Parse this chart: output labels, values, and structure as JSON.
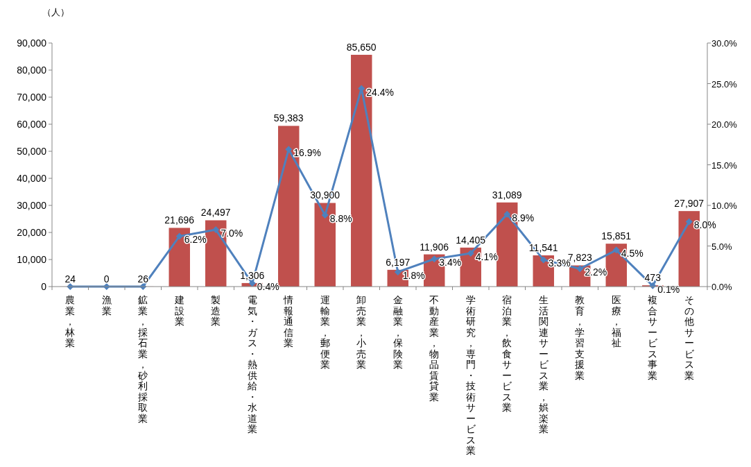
{
  "chart_data": {
    "type": "bar",
    "ylabel": "（人）",
    "categories": [
      "農業，林業",
      "漁業",
      "鉱業，採石業，砂利採取業",
      "建設業",
      "製造業",
      "電気・ガス・熱供給・水道業",
      "情報通信業",
      "運輸業，郵便業",
      "卸売業，小売業",
      "金融業，保険業",
      "不動産業，物品賃貸業",
      "学術研究，専門・技術サービス業",
      "宿泊業，飲食サービス業",
      "生活関連サービス業，娯楽業",
      "教育，学習支援業",
      "医療，福祉",
      "複合サービス事業",
      "その他サービス業"
    ],
    "series": [
      {
        "color": "#c0504d",
        "values": [
          24,
          0,
          26,
          21696,
          24497,
          1306,
          59383,
          30900,
          85650,
          6197,
          11906,
          14405,
          31089,
          11541,
          7823,
          15851,
          473,
          27907
        ],
        "value_labels": [
          "24",
          "0",
          "26",
          "21,696",
          "24,497",
          "1,306",
          "59,383",
          "30,900",
          "85,650",
          "6,197",
          "11,906",
          "14,405",
          "31,089",
          "11,541",
          "7,823",
          "15,851",
          "473",
          "27,907"
        ]
      },
      {
        "type": "line",
        "axis": "y2",
        "color": "#4f81bd",
        "marker": "diamond",
        "values": [
          0,
          0,
          0,
          6.2,
          7.0,
          0.4,
          16.9,
          8.8,
          24.4,
          1.8,
          3.4,
          4.1,
          8.9,
          3.3,
          2.2,
          4.5,
          0.1,
          8.0
        ],
        "value_labels": [
          null,
          null,
          null,
          "6.2%",
          "7.0%",
          "0.4%",
          "16.9%",
          "8.8%",
          "24.4%",
          "1.8%",
          "3.4%",
          "4.1%",
          "8.9%",
          "3.3%",
          "2.2%",
          "4.5%",
          "0.1%",
          "8.0%"
        ]
      }
    ],
    "ylim": [
      0,
      90000
    ],
    "yticks": [
      {
        "value": 0,
        "label": "0"
      },
      {
        "value": 10000,
        "label": "10,000"
      },
      {
        "value": 20000,
        "label": "20,000"
      },
      {
        "value": 30000,
        "label": "30,000"
      },
      {
        "value": 40000,
        "label": "40,000"
      },
      {
        "value": 50000,
        "label": "50,000"
      },
      {
        "value": 60000,
        "label": "60,000"
      },
      {
        "value": 70000,
        "label": "70,000"
      },
      {
        "value": 80000,
        "label": "80,000"
      },
      {
        "value": 90000,
        "label": "90,000"
      }
    ],
    "y2lim": [
      0,
      30
    ],
    "y2ticks": [
      {
        "value": 0,
        "label": "0.0%"
      },
      {
        "value": 5,
        "label": "5.0%"
      },
      {
        "value": 10,
        "label": "10.0%"
      },
      {
        "value": 15,
        "label": "15.0%"
      },
      {
        "value": 20,
        "label": "20.0%"
      },
      {
        "value": 25,
        "label": "25.0%"
      },
      {
        "value": 30,
        "label": "30.0%"
      }
    ],
    "grid": false
  }
}
